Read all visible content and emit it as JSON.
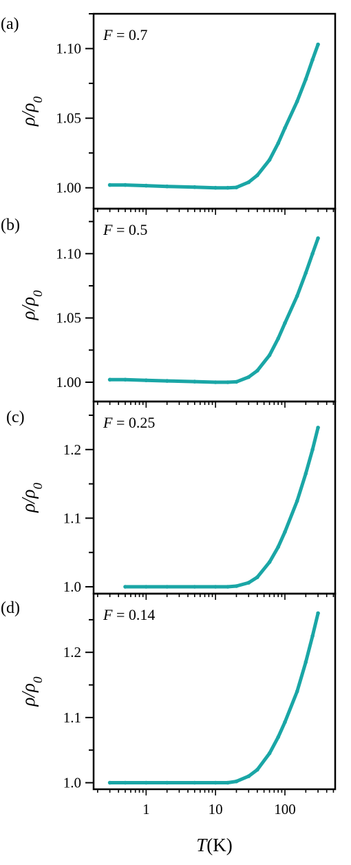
{
  "colors": {
    "series": "#1aa6a6",
    "frame": "#000000"
  },
  "chart_data": [
    {
      "type": "line",
      "panel_label": "(a)",
      "annotation": "F = 0.7",
      "ylabel": "ρ/ρ0",
      "xlabel": "",
      "x_scale": "log",
      "xlim": [
        0.175,
        530
      ],
      "ylim": [
        0.985,
        1.125
      ],
      "yticks": [
        "1.00",
        "1.05",
        "1.10"
      ],
      "ytick_values": [
        1.0,
        1.05,
        1.1
      ],
      "series": [
        {
          "x": [
            0.3,
            0.5,
            1,
            2,
            5,
            10,
            15,
            20,
            30,
            40,
            60,
            80,
            100,
            150,
            200,
            250,
            300
          ],
          "y": [
            1.002,
            1.002,
            1.0015,
            1.001,
            1.0005,
            1.0,
            1.0,
            1.0003,
            1.004,
            1.009,
            1.02,
            1.032,
            1.043,
            1.062,
            1.078,
            1.092,
            1.103
          ]
        }
      ]
    },
    {
      "type": "line",
      "panel_label": "(b)",
      "annotation": "F = 0.5",
      "ylabel": "ρ/ρ0",
      "xlabel": "",
      "x_scale": "log",
      "xlim": [
        0.175,
        530
      ],
      "ylim": [
        0.985,
        1.135
      ],
      "yticks": [
        "1.00",
        "1.05",
        "1.10"
      ],
      "ytick_values": [
        1.0,
        1.05,
        1.1
      ],
      "series": [
        {
          "x": [
            0.3,
            0.5,
            1,
            2,
            5,
            10,
            15,
            20,
            30,
            40,
            60,
            80,
            100,
            150,
            200,
            250,
            300
          ],
          "y": [
            1.002,
            1.002,
            1.0015,
            1.001,
            1.0005,
            1.0,
            1.0,
            1.0003,
            1.004,
            1.009,
            1.021,
            1.034,
            1.046,
            1.067,
            1.085,
            1.1,
            1.112
          ]
        }
      ]
    },
    {
      "type": "line",
      "panel_label": "(c)",
      "annotation": "F = 0.25",
      "ylabel": "ρ/ρ0",
      "xlabel": "",
      "x_scale": "log",
      "xlim": [
        0.175,
        530
      ],
      "ylim": [
        0.99,
        1.27
      ],
      "yticks": [
        "1.0",
        "1.1",
        "1.2"
      ],
      "ytick_values": [
        1.0,
        1.1,
        1.2
      ],
      "series": [
        {
          "x": [
            0.5,
            1,
            2,
            5,
            10,
            15,
            20,
            30,
            40,
            60,
            80,
            100,
            150,
            200,
            250,
            300
          ],
          "y": [
            1.0,
            1.0,
            1.0,
            1.0,
            1.0,
            1.0,
            1.001,
            1.006,
            1.014,
            1.036,
            1.058,
            1.08,
            1.125,
            1.165,
            1.2,
            1.232
          ]
        }
      ]
    },
    {
      "type": "line",
      "panel_label": "(d)",
      "annotation": "F = 0.14",
      "ylabel": "ρ/ρ0",
      "xlabel": "T(K)",
      "x_scale": "log",
      "xlim": [
        0.175,
        530
      ],
      "ylim": [
        0.99,
        1.29
      ],
      "yticks": [
        "1.0",
        "1.1",
        "1.2"
      ],
      "ytick_values": [
        1.0,
        1.1,
        1.2
      ],
      "xticks": [
        "1",
        "10",
        "100"
      ],
      "xtick_values": [
        1,
        10,
        100
      ],
      "series": [
        {
          "x": [
            0.3,
            0.5,
            1,
            2,
            5,
            10,
            15,
            20,
            30,
            40,
            60,
            80,
            100,
            150,
            200,
            250,
            300
          ],
          "y": [
            1.0,
            1.0,
            1.0,
            1.0,
            1.0,
            1.0,
            1.0,
            1.002,
            1.01,
            1.02,
            1.045,
            1.07,
            1.093,
            1.14,
            1.185,
            1.225,
            1.26
          ]
        }
      ]
    }
  ]
}
